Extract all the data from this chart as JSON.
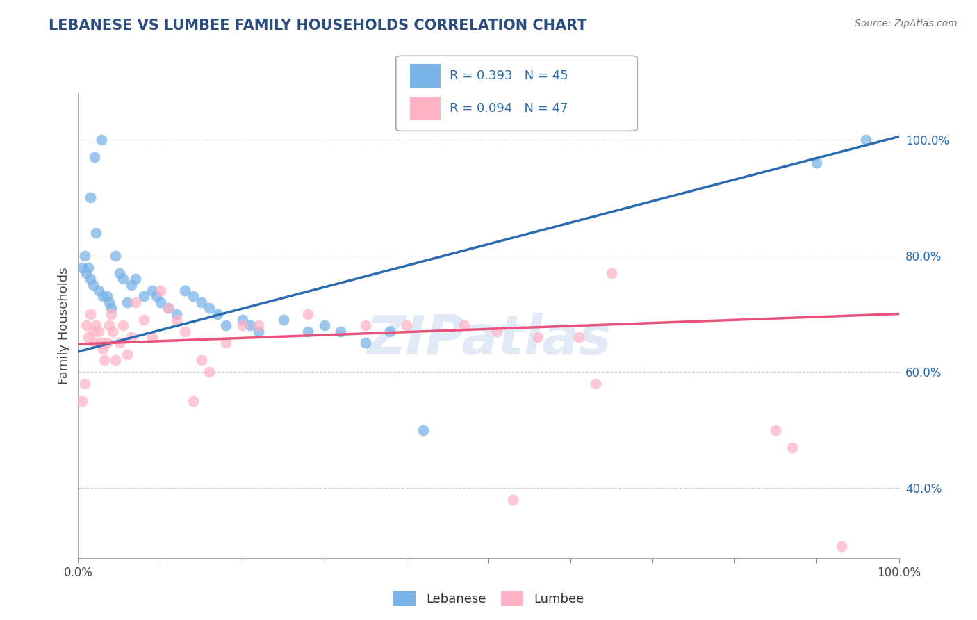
{
  "title": "LEBANESE VS LUMBEE FAMILY HOUSEHOLDS CORRELATION CHART",
  "source": "Source: ZipAtlas.com",
  "ylabel": "Family Households",
  "right_yticks": [
    "40.0%",
    "60.0%",
    "80.0%",
    "100.0%"
  ],
  "right_ytick_vals": [
    0.4,
    0.6,
    0.8,
    1.0
  ],
  "blue_color": "#7AB4E8",
  "pink_color": "#FFB3C6",
  "blue_line_color": "#2B6CB0",
  "pink_line_color": "#E8527A",
  "legend_r_blue": "R = 0.393",
  "legend_n_blue": "N = 45",
  "legend_r_pink": "R = 0.094",
  "legend_n_pink": "N = 47",
  "legend_text_color": "#2B6CB0",
  "watermark": "ZIPatlas",
  "xlim": [
    0.0,
    1.0
  ],
  "ylim": [
    0.28,
    1.08
  ],
  "leb_line_x0": 0.0,
  "leb_line_y0": 0.635,
  "leb_line_x1": 1.0,
  "leb_line_y1": 1.005,
  "lum_line_x0": 0.0,
  "lum_line_y0": 0.648,
  "lum_line_x1": 1.0,
  "lum_line_y1": 0.7,
  "lebanese_x": [
    0.02,
    0.028,
    0.015,
    0.022,
    0.012,
    0.008,
    0.005,
    0.01,
    0.015,
    0.018,
    0.025,
    0.03,
    0.035,
    0.038,
    0.04,
    0.045,
    0.05,
    0.055,
    0.06,
    0.065,
    0.07,
    0.08,
    0.09,
    0.095,
    0.1,
    0.11,
    0.12,
    0.13,
    0.14,
    0.15,
    0.16,
    0.17,
    0.18,
    0.2,
    0.21,
    0.22,
    0.25,
    0.28,
    0.3,
    0.32,
    0.35,
    0.38,
    0.42,
    0.9,
    0.96
  ],
  "lebanese_y": [
    0.97,
    1.0,
    0.9,
    0.84,
    0.78,
    0.8,
    0.78,
    0.77,
    0.76,
    0.75,
    0.74,
    0.73,
    0.73,
    0.72,
    0.71,
    0.8,
    0.77,
    0.76,
    0.72,
    0.75,
    0.76,
    0.73,
    0.74,
    0.73,
    0.72,
    0.71,
    0.7,
    0.74,
    0.73,
    0.72,
    0.71,
    0.7,
    0.68,
    0.69,
    0.68,
    0.67,
    0.69,
    0.67,
    0.68,
    0.67,
    0.65,
    0.67,
    0.5,
    0.96,
    1.0
  ],
  "lumbee_x": [
    0.005,
    0.008,
    0.01,
    0.012,
    0.015,
    0.018,
    0.02,
    0.022,
    0.025,
    0.028,
    0.03,
    0.032,
    0.035,
    0.038,
    0.04,
    0.042,
    0.045,
    0.05,
    0.055,
    0.06,
    0.065,
    0.07,
    0.08,
    0.09,
    0.1,
    0.11,
    0.12,
    0.13,
    0.14,
    0.15,
    0.16,
    0.18,
    0.2,
    0.22,
    0.28,
    0.35,
    0.4,
    0.47,
    0.51,
    0.53,
    0.56,
    0.61,
    0.63,
    0.65,
    0.85,
    0.87,
    0.93
  ],
  "lumbee_y": [
    0.55,
    0.58,
    0.68,
    0.66,
    0.7,
    0.67,
    0.65,
    0.68,
    0.67,
    0.65,
    0.64,
    0.62,
    0.65,
    0.68,
    0.7,
    0.67,
    0.62,
    0.65,
    0.68,
    0.63,
    0.66,
    0.72,
    0.69,
    0.66,
    0.74,
    0.71,
    0.69,
    0.67,
    0.55,
    0.62,
    0.6,
    0.65,
    0.68,
    0.68,
    0.7,
    0.68,
    0.68,
    0.68,
    0.67,
    0.38,
    0.66,
    0.66,
    0.58,
    0.77,
    0.5,
    0.47,
    0.3
  ]
}
